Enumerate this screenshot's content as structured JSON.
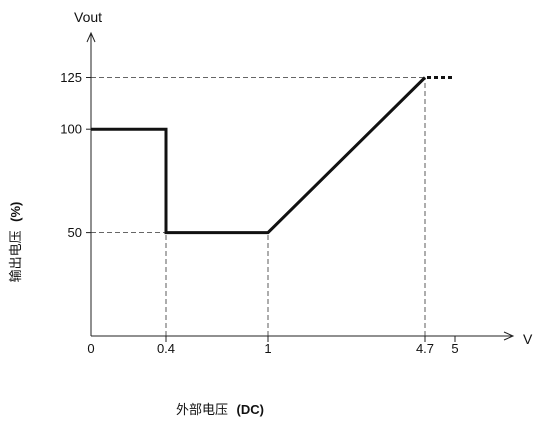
{
  "chart_data": {
    "type": "line",
    "title": "",
    "x_axis_title": "Vout",
    "x_label_prefix": "外部电压",
    "x_label_suffix": "(DC)",
    "x_unit": "V",
    "y_label_prefix": "输出电压",
    "y_label_suffix": "(%)",
    "y_ticks": [
      {
        "value": 50,
        "label": "50"
      },
      {
        "value": 100,
        "label": "100"
      },
      {
        "value": 125,
        "label": "125"
      }
    ],
    "x_ticks": [
      {
        "value": 0,
        "label": "0"
      },
      {
        "value": 0.4,
        "label": "0.4"
      },
      {
        "value": 1,
        "label": "1"
      },
      {
        "value": 4.7,
        "label": "4.7"
      },
      {
        "value": 5,
        "label": "5"
      }
    ],
    "series": [
      {
        "points": [
          {
            "x": 0,
            "y": 100
          },
          {
            "x": 0.4,
            "y": 100
          },
          {
            "x": 0.4,
            "y": 50
          },
          {
            "x": 1,
            "y": 50
          },
          {
            "x": 4.7,
            "y": 125
          }
        ],
        "continuation": {
          "from_x": 4.7,
          "to_x": 5,
          "y": 125,
          "style": "dotted"
        }
      }
    ],
    "guides": [
      {
        "axis": "y",
        "value": 125,
        "to_x": 4.7
      },
      {
        "axis": "y",
        "value": 50,
        "to_x": 0.4
      },
      {
        "axis": "x",
        "value": 0.4,
        "to_y": 50
      },
      {
        "axis": "x",
        "value": 1,
        "to_y": 50
      },
      {
        "axis": "x",
        "value": 4.7,
        "to_y": 125
      }
    ],
    "xlim": [
      0,
      5
    ],
    "ylim": [
      0,
      125
    ],
    "grid": false,
    "legend": "none"
  }
}
